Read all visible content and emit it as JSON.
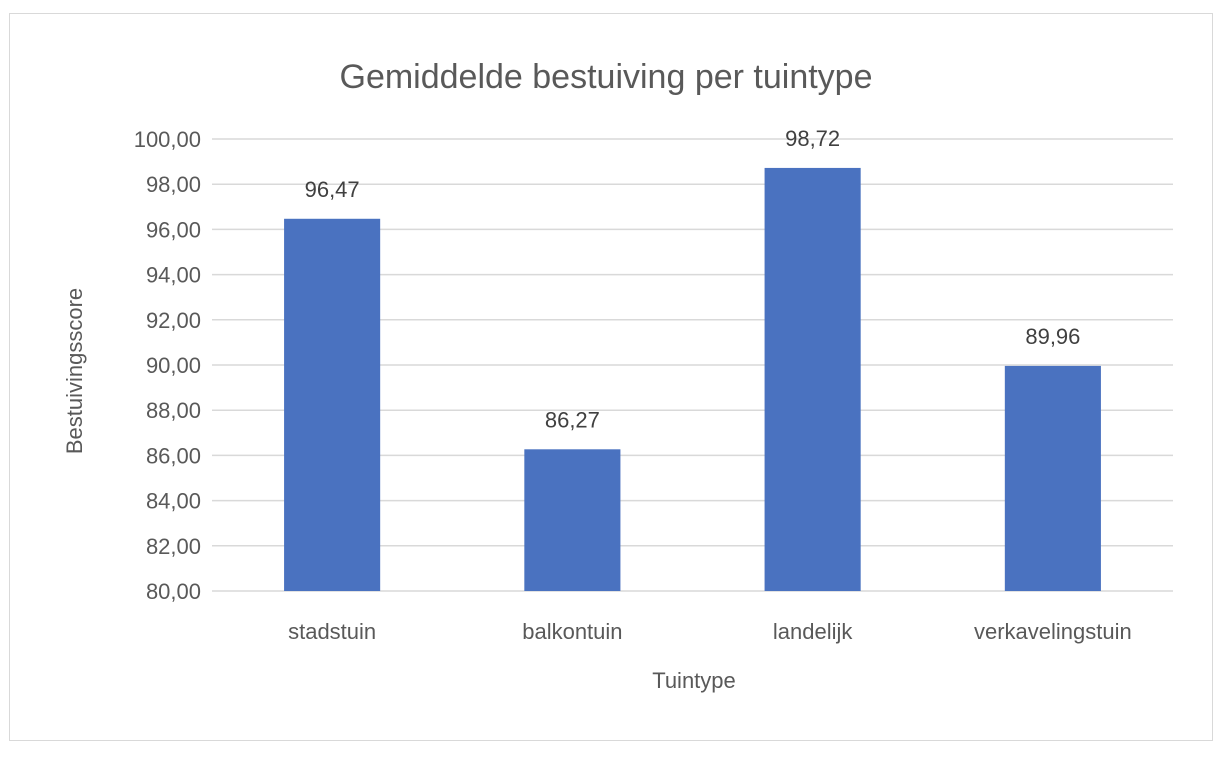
{
  "chart_data": {
    "type": "bar",
    "title": "Gemiddelde bestuiving per tuintype",
    "xlabel": "Tuintype",
    "ylabel": "Bestuivingsscore",
    "categories": [
      "stadstuin",
      "balkontuin",
      "landelijk",
      "verkavelingstuin"
    ],
    "values": [
      96.47,
      86.27,
      98.72,
      89.96
    ],
    "data_labels": [
      "96,47",
      "86,27",
      "98,72",
      "89,96"
    ],
    "ylim": [
      80,
      100
    ],
    "y_ticks": [
      "80,00",
      "82,00",
      "84,00",
      "86,00",
      "88,00",
      "90,00",
      "92,00",
      "94,00",
      "96,00",
      "98,00",
      "100,00"
    ],
    "grid": true,
    "legend": "none",
    "bar_color": "#4a72c0",
    "grid_color": "#d9d9d9"
  }
}
